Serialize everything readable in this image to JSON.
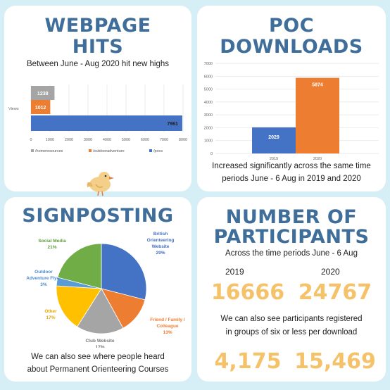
{
  "webpage": {
    "title1": "WEBPAGE",
    "title2": "HITS",
    "subtitle": "Between June  - Aug 2020 hit new highs"
  },
  "poc": {
    "title1": "POC",
    "title2": "DOWNLOADS",
    "caption1": "Increased significantly across the same time",
    "caption2": "periods June - 6 Aug in 2019 and 2020"
  },
  "signposting": {
    "title": "SIGNPOSTING",
    "caption1": "We can also see where people heard",
    "caption2": "about Permanent Orienteering Courses"
  },
  "participants": {
    "title1": "NUMBER OF",
    "title2": "PARTICIPANTS",
    "subtitle": "Across the time periods June - 6 Aug",
    "year1": "2019",
    "year2": "2020",
    "value1": "16666",
    "value2": "24767",
    "note1": "We can also see participants registered",
    "note2": "in groups of six or less per download",
    "group1": "4,175",
    "group2": "15,469"
  },
  "colors": {
    "title": "#3f6e9a",
    "accent": "#f5c26a",
    "grey": "#a5a5a5",
    "orange": "#ed7d31",
    "blue": "#4472c4",
    "yellow": "#ffc000",
    "green": "#70ad47",
    "lightblue": "#5b9bd5"
  },
  "chart_data": [
    {
      "type": "bar",
      "orientation": "horizontal",
      "category": "Views",
      "series": [
        {
          "name": "/homeresources",
          "value": 1238,
          "color": "#a5a5a5"
        },
        {
          "name": "/outdooradventure",
          "value": 1012,
          "color": "#ed7d31"
        },
        {
          "name": "/pocs",
          "value": 7961,
          "color": "#4472c4"
        }
      ],
      "xticks": [
        "0",
        "1000",
        "2000",
        "3000",
        "4000",
        "5000",
        "6000",
        "7000",
        "8000"
      ],
      "xlim": [
        0,
        8000
      ],
      "ylabel": "Views",
      "legend": "bottom"
    },
    {
      "type": "bar",
      "categories": [
        "2019",
        "2020"
      ],
      "values": [
        2029,
        5874
      ],
      "colors": [
        "#4472c4",
        "#ed7d31"
      ],
      "yticks": [
        "0",
        "1000",
        "2000",
        "3000",
        "4000",
        "5000",
        "6000",
        "7000"
      ],
      "ylim": [
        0,
        7000
      ]
    },
    {
      "type": "pie",
      "slices": [
        {
          "label": [
            "British",
            "Orienteering",
            "Website"
          ],
          "pct": "29%",
          "value": 29,
          "color": "#4472c4"
        },
        {
          "label": [
            "Friend / Family /",
            "Colleague"
          ],
          "pct": "13%",
          "value": 13,
          "color": "#ed7d31"
        },
        {
          "label": [
            "Club Website"
          ],
          "pct": "17%",
          "value": 17,
          "color": "#a5a5a5"
        },
        {
          "label": [
            "Other"
          ],
          "pct": "17%",
          "value": 17,
          "color": "#ffc000"
        },
        {
          "label": [
            "Outdoor",
            "Adventure Flyer"
          ],
          "pct": "3%",
          "value": 3,
          "color": "#5b9bd5"
        },
        {
          "label": [
            "Social Media"
          ],
          "pct": "21%",
          "value": 21,
          "color": "#70ad47"
        }
      ]
    }
  ]
}
